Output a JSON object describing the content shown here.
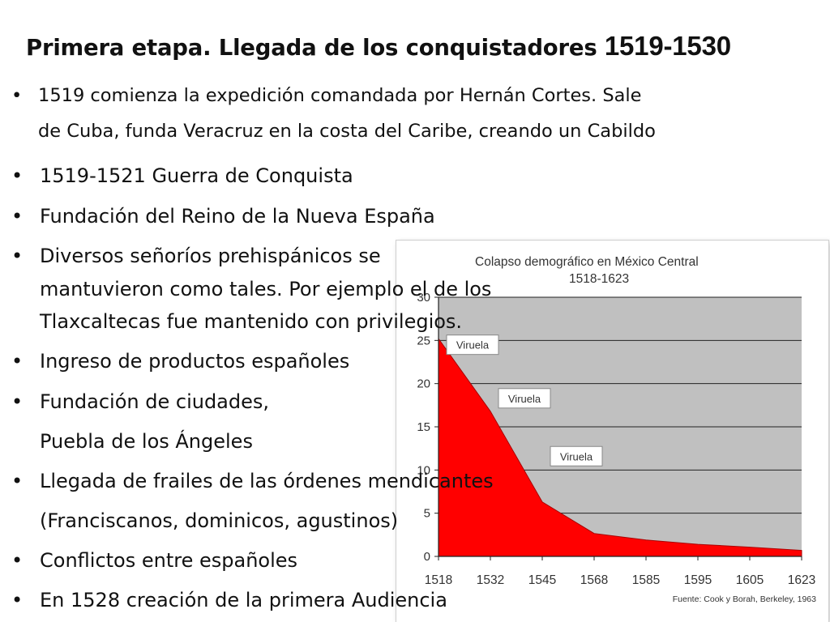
{
  "slide": {
    "title_main": "Primera etapa. Llegada de los conquistadores ",
    "title_year": "1519-1530",
    "bullet_char": "•",
    "bullets": [
      {
        "line1": "1519 comienza la expedición comandada por Hernán Cortes. Sale",
        "line2": "de Cuba, funda Veracruz en la costa del Caribe, creando un Cabildo"
      },
      {
        "line1": "1519-1521 Guerra de Conquista"
      },
      {
        "line1": "Fundación del Reino de la Nueva España"
      },
      {
        "line1": "Diversos señoríos prehispánicos se",
        "line2": "mantuvieron como tales. Por ejemplo el de los",
        "line3": "Tlaxcaltecas fue mantenido con privilegios."
      },
      {
        "line1": "Ingreso de productos españoles"
      },
      {
        "line1": "Fundación de ciudades,",
        "line2": "Puebla de los Ángeles"
      },
      {
        "line1": "Llegada de frailes de las órdenes mendicantes",
        "line2": "(Franciscanos, dominicos, agustinos)"
      },
      {
        "line1": "Conflictos entre españoles"
      },
      {
        "line1": "En 1528 creación de la primera Audiencia"
      }
    ]
  },
  "chart_data": {
    "type": "area",
    "title": "Colapso demográfico en México Central",
    "subtitle": "1518-1623",
    "x": [
      "1518",
      "1532",
      "1545",
      "1568",
      "1585",
      "1595",
      "1605",
      "1623"
    ],
    "y_ticks": [
      "0",
      "5",
      "10",
      "15",
      "20",
      "25",
      "30"
    ],
    "ylim": [
      0,
      30
    ],
    "series": [
      {
        "values": [
          25.2,
          16.8,
          6.3,
          2.65,
          1.9,
          1.4,
          1.07,
          0.7
        ]
      }
    ],
    "annotations": [
      {
        "text": "Viruela",
        "x": "1518",
        "y": 24.5
      },
      {
        "text": "Viruela",
        "x": "1532",
        "y": 18.3
      },
      {
        "text": "Viruela",
        "x": "1545",
        "y": 11.6
      }
    ],
    "source": "Fuente: Cook y Borah, Berkeley, 1963",
    "colors": {
      "fill": "#ff0000",
      "plot_bg": "#c0c0c0",
      "grid": "#222222",
      "text": "#333333"
    },
    "grid": true
  }
}
